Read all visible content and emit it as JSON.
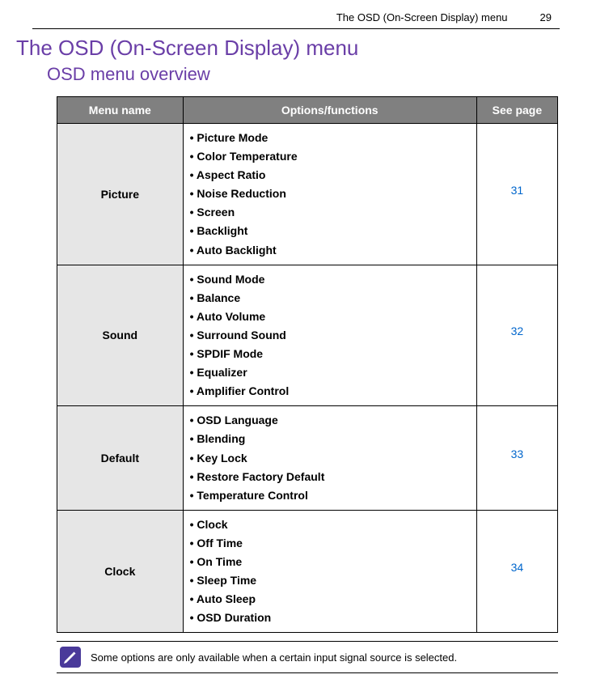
{
  "header": {
    "running_title": "The OSD (On-Screen Display) menu",
    "page_number": "29"
  },
  "title": "The OSD (On-Screen Display) menu",
  "subtitle": "OSD menu overview",
  "table": {
    "headers": {
      "col1": "Menu name",
      "col2": "Options/functions",
      "col3": "See page"
    },
    "rows": [
      {
        "menu": "Picture",
        "options": [
          "Picture Mode",
          "Color Temperature",
          "Aspect Ratio",
          "Noise Reduction",
          "Screen",
          "Backlight",
          "Auto Backlight"
        ],
        "page": "31"
      },
      {
        "menu": "Sound",
        "options": [
          "Sound Mode",
          "Balance",
          "Auto Volume",
          "Surround Sound",
          "SPDIF Mode",
          "Equalizer",
          "Amplifier Control"
        ],
        "page": "32"
      },
      {
        "menu": "Default",
        "options": [
          "OSD Language",
          "Blending",
          "Key Lock",
          "Restore Factory Default",
          "Temperature Control"
        ],
        "page": "33"
      },
      {
        "menu": "Clock",
        "options": [
          "Clock",
          "Off Time",
          "On Time",
          "Sleep Time",
          "Auto Sleep",
          "OSD Duration"
        ],
        "page": "34"
      }
    ]
  },
  "note": "Some options are only available when a certain input signal source is selected.",
  "colors": {
    "heading": "#6a3ea7",
    "thead_bg": "#808080",
    "cell_shade": "#e6e6e6",
    "link": "#0066cc",
    "note_icon_bg": "#4a3a9a"
  }
}
